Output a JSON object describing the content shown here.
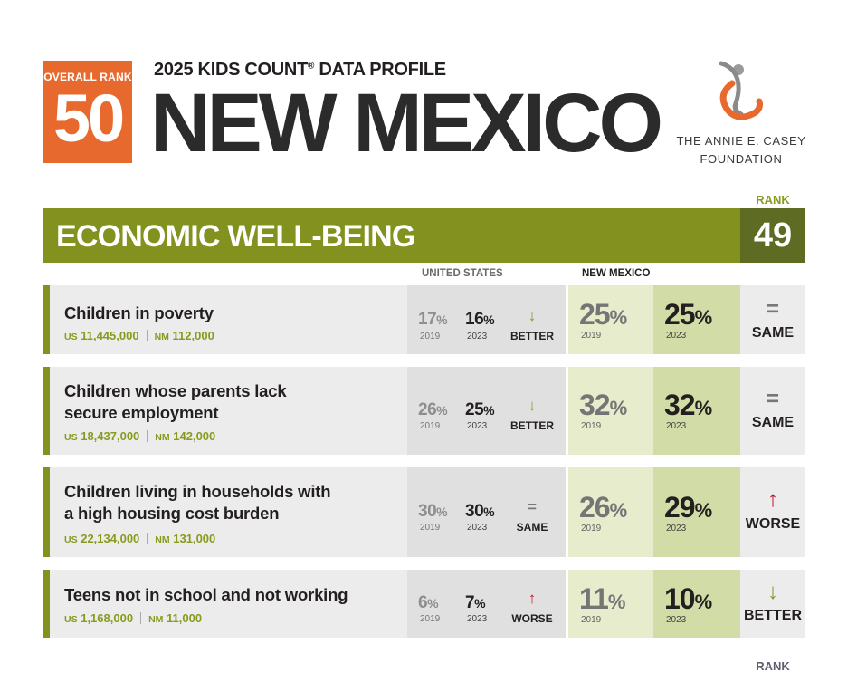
{
  "header": {
    "overall_rank_label": "OVERALL RANK",
    "overall_rank": "50",
    "profile_title_pre": "2025 KIDS COUNT",
    "profile_title_reg": "®",
    "profile_title_post": " DATA PROFILE",
    "state_name": "NEW MEXICO",
    "foundation_line1": "THE ANNIE E. CASEY",
    "foundation_line2": "FOUNDATION"
  },
  "section": {
    "rank_caption": "RANK",
    "title": "ECONOMIC WELL-BEING",
    "rank": "49",
    "col_us": "UNITED STATES",
    "col_nm": "NEW MEXICO",
    "bottom_rank_caption": "RANK"
  },
  "indicators": [
    {
      "name_line1": "Children in poverty",
      "name_line2": "",
      "us_prefix": "US",
      "us_count": "11,445,000",
      "nm_prefix": "NM",
      "nm_count": "112,000",
      "us_2019": "17",
      "us_2023": "16",
      "us_change_symbol": "↓",
      "us_change": "BETTER",
      "nm_2019": "25",
      "nm_2023": "25",
      "nm_change_symbol": "=",
      "nm_change": "SAME",
      "year1": "2019",
      "year2": "2023",
      "pct": "%"
    },
    {
      "name_line1": "Children whose parents lack",
      "name_line2": "secure employment",
      "us_prefix": "US",
      "us_count": "18,437,000",
      "nm_prefix": "NM",
      "nm_count": "142,000",
      "us_2019": "26",
      "us_2023": "25",
      "us_change_symbol": "↓",
      "us_change": "BETTER",
      "nm_2019": "32",
      "nm_2023": "32",
      "nm_change_symbol": "=",
      "nm_change": "SAME",
      "year1": "2019",
      "year2": "2023",
      "pct": "%"
    },
    {
      "name_line1": "Children living in households with",
      "name_line2": "a high housing cost burden",
      "us_prefix": "US",
      "us_count": "22,134,000",
      "nm_prefix": "NM",
      "nm_count": "131,000",
      "us_2019": "30",
      "us_2023": "30",
      "us_change_symbol": "=",
      "us_change": "SAME",
      "nm_2019": "26",
      "nm_2023": "29",
      "nm_change_symbol": "↑",
      "nm_change": "WORSE",
      "year1": "2019",
      "year2": "2023",
      "pct": "%"
    },
    {
      "name_line1": "Teens not in school and not working",
      "name_line2": "",
      "us_prefix": "US",
      "us_count": "1,168,000",
      "nm_prefix": "NM",
      "nm_count": "11,000",
      "us_2019": "6",
      "us_2023": "7",
      "us_change_symbol": "↑",
      "us_change": "WORSE",
      "nm_2019": "11",
      "nm_2023": "10",
      "nm_change_symbol": "↓",
      "nm_change": "BETTER",
      "year1": "2019",
      "year2": "2023",
      "pct": "%"
    }
  ],
  "colors": {
    "rank_orange": "#e8692e",
    "domain_green": "#83911e",
    "rank_dark_green": "#5e6b23",
    "better_green": "#7d9b1c",
    "worse_red": "#c8102e"
  }
}
